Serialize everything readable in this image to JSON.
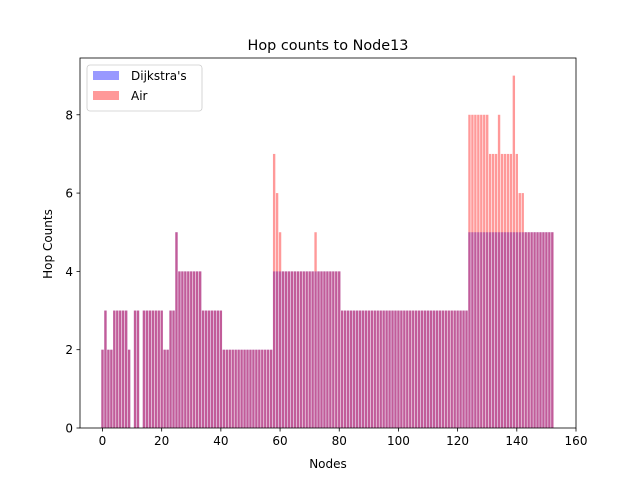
{
  "chart_data": {
    "type": "bar",
    "title": "Hop counts to Node13",
    "xlabel": "Nodes",
    "ylabel": "Hop Counts",
    "xlim": [
      -7.6,
      160
    ],
    "ylim": [
      0,
      9.45
    ],
    "xticks": [
      0,
      20,
      40,
      60,
      80,
      100,
      120,
      140,
      160
    ],
    "yticks": [
      0,
      2,
      4,
      6,
      8
    ],
    "legend_position": "top-left",
    "grid": false,
    "x": [
      0,
      1,
      2,
      3,
      4,
      5,
      6,
      7,
      8,
      9,
      10,
      11,
      12,
      13,
      14,
      15,
      16,
      17,
      18,
      19,
      20,
      21,
      22,
      23,
      24,
      25,
      26,
      27,
      28,
      29,
      30,
      31,
      32,
      33,
      34,
      35,
      36,
      37,
      38,
      39,
      40,
      41,
      42,
      43,
      44,
      45,
      46,
      47,
      48,
      49,
      50,
      51,
      52,
      53,
      54,
      55,
      56,
      57,
      58,
      59,
      60,
      61,
      62,
      63,
      64,
      65,
      66,
      67,
      68,
      69,
      70,
      71,
      72,
      73,
      74,
      75,
      76,
      77,
      78,
      79,
      80,
      81,
      82,
      83,
      84,
      85,
      86,
      87,
      88,
      89,
      90,
      91,
      92,
      93,
      94,
      95,
      96,
      97,
      98,
      99,
      100,
      101,
      102,
      103,
      104,
      105,
      106,
      107,
      108,
      109,
      110,
      111,
      112,
      113,
      114,
      115,
      116,
      117,
      118,
      119,
      120,
      121,
      122,
      123,
      124,
      125,
      126,
      127,
      128,
      129,
      130,
      131,
      132,
      133,
      134,
      135,
      136,
      137,
      138,
      139,
      140,
      141,
      142,
      143,
      144,
      145,
      146,
      147,
      148,
      149,
      150,
      151,
      152
    ],
    "series": [
      {
        "name": "Dijkstra's",
        "color": "#9999ff",
        "values": [
          2,
          3,
          2,
          2,
          3,
          3,
          3,
          3,
          3,
          2,
          0,
          3,
          3,
          0,
          3,
          3,
          3,
          3,
          3,
          3,
          3,
          2,
          2,
          3,
          3,
          5,
          4,
          4,
          4,
          4,
          4,
          4,
          4,
          4,
          3,
          3,
          3,
          3,
          3,
          3,
          3,
          2,
          2,
          2,
          2,
          2,
          2,
          2,
          2,
          2,
          2,
          2,
          2,
          2,
          2,
          2,
          2,
          2,
          4,
          4,
          4,
          4,
          4,
          4,
          4,
          4,
          4,
          4,
          4,
          4,
          4,
          4,
          4,
          4,
          4,
          4,
          4,
          4,
          4,
          4,
          4,
          3,
          3,
          3,
          3,
          3,
          3,
          3,
          3,
          3,
          3,
          3,
          3,
          3,
          3,
          3,
          3,
          3,
          3,
          3,
          3,
          3,
          3,
          3,
          3,
          3,
          3,
          3,
          3,
          3,
          3,
          3,
          3,
          3,
          3,
          3,
          3,
          3,
          3,
          3,
          3,
          3,
          3,
          3,
          5,
          5,
          5,
          5,
          5,
          5,
          5,
          5,
          5,
          5,
          5,
          5,
          5,
          5,
          5,
          5,
          5,
          5,
          5,
          5,
          5,
          5,
          5,
          5,
          5,
          5,
          5,
          5,
          5
        ]
      },
      {
        "name": "Air",
        "color": "#ff9999",
        "values": [
          2,
          3,
          2,
          2,
          3,
          3,
          3,
          3,
          3,
          2,
          0,
          3,
          3,
          0,
          3,
          3,
          3,
          3,
          3,
          3,
          3,
          2,
          2,
          3,
          3,
          5,
          4,
          4,
          4,
          4,
          4,
          4,
          4,
          4,
          3,
          3,
          3,
          3,
          3,
          3,
          3,
          2,
          2,
          2,
          2,
          2,
          2,
          2,
          2,
          2,
          2,
          2,
          2,
          2,
          2,
          2,
          2,
          2,
          7,
          6,
          5,
          4,
          4,
          4,
          4,
          4,
          4,
          4,
          4,
          4,
          4,
          4,
          5,
          4,
          4,
          4,
          4,
          4,
          4,
          4,
          4,
          3,
          3,
          3,
          3,
          3,
          3,
          3,
          3,
          3,
          3,
          3,
          3,
          3,
          3,
          3,
          3,
          3,
          3,
          3,
          3,
          3,
          3,
          3,
          3,
          3,
          3,
          3,
          3,
          3,
          3,
          3,
          3,
          3,
          3,
          3,
          3,
          3,
          3,
          3,
          3,
          3,
          3,
          3,
          8,
          8,
          8,
          8,
          8,
          8,
          8,
          7,
          7,
          7,
          8,
          7,
          7,
          7,
          7,
          9,
          7,
          6,
          6,
          5,
          5,
          5,
          5,
          5,
          5,
          5,
          5,
          5,
          5
        ]
      }
    ]
  }
}
